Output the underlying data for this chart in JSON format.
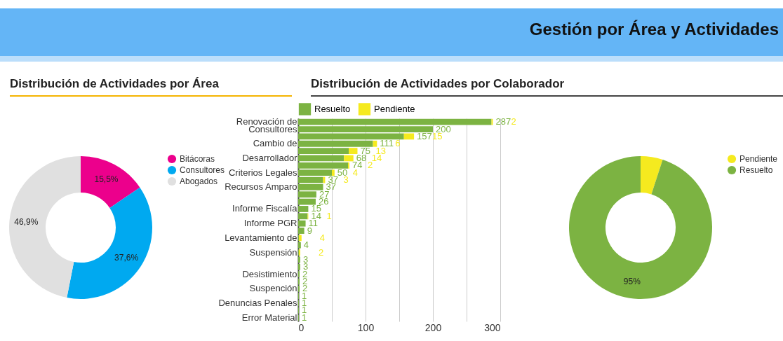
{
  "chart_data": [
    {
      "type": "donut",
      "title": "Distribución de Actividades por  Área",
      "annotations": [
        "Gestión por Área y Actividades"
      ],
      "categories": [
        "Bitácoras",
        "Consultores",
        "Abogados"
      ],
      "values": [
        15.5,
        37.6,
        46.9
      ],
      "colors": [
        "#ec008c",
        "#00a9f0",
        "#e0e0e0"
      ],
      "value_labels": [
        "15,5%",
        "37,6%",
        "46,9%"
      ],
      "legend": "right"
    },
    {
      "type": "bar",
      "title": "Distribución de Actividades por Colaborador",
      "orientation": "horizontal",
      "stacked": true,
      "categories": [
        "Renovación de",
        "Consultores",
        null,
        "Cambio de",
        null,
        "Desarrollador",
        null,
        "Criterios Legales",
        null,
        "Recursos Amparo",
        null,
        null,
        "Informe Fiscalía",
        null,
        "Informe PGR",
        null,
        "Levantamiento de",
        null,
        "Suspensión",
        null,
        null,
        "Desistimiento",
        null,
        "Suspención",
        null,
        "Denuncias Penales",
        null,
        "Error Material"
      ],
      "series": [
        {
          "name": "Resuelto",
          "color": "#7cb342",
          "values": [
            287,
            200,
            157,
            111,
            75,
            68,
            74,
            50,
            37,
            37,
            27,
            26,
            15,
            14,
            11,
            9,
            1,
            4,
            1,
            3,
            3,
            2,
            2,
            2,
            1,
            1,
            1,
            1
          ],
          "value_labels": [
            "287",
            "200",
            "157",
            "111",
            "75",
            "68",
            "74",
            "50",
            "37",
            "37",
            "27",
            "26",
            "15",
            "14",
            "11",
            "9",
            null,
            "4",
            null,
            "3",
            "3",
            "2",
            "2",
            "2",
            "1",
            "1",
            "1",
            "1"
          ]
        },
        {
          "name": "Pendiente",
          "color": "#f5ea1f",
          "values": [
            2,
            null,
            15,
            6,
            13,
            14,
            2,
            4,
            3,
            null,
            null,
            null,
            null,
            1,
            null,
            null,
            4,
            null,
            2,
            null,
            null,
            null,
            null,
            null,
            null,
            null,
            null,
            null
          ],
          "value_labels": [
            "2",
            null,
            "15",
            "6",
            "13",
            "14",
            "2",
            "4",
            "3",
            null,
            null,
            null,
            null,
            "1",
            null,
            null,
            "4",
            null,
            "2",
            null,
            null,
            null,
            null,
            null,
            null,
            null,
            null,
            null
          ]
        }
      ],
      "xlim": [
        0,
        300
      ],
      "xticks": [
        0,
        {
          "value": 50,
          "label": null
        },
        100,
        {
          "value": 150,
          "label": null
        },
        200,
        {
          "value": 250,
          "label": null
        },
        300
      ],
      "grid": "x",
      "legend": "top"
    },
    {
      "type": "donut",
      "categories": [
        "Pendiente",
        "Resuelto"
      ],
      "values": [
        5,
        95
      ],
      "colors": [
        "#f5ea1f",
        "#7cb342"
      ],
      "value_labels": [
        null,
        "95%"
      ],
      "legend": "right"
    }
  ]
}
